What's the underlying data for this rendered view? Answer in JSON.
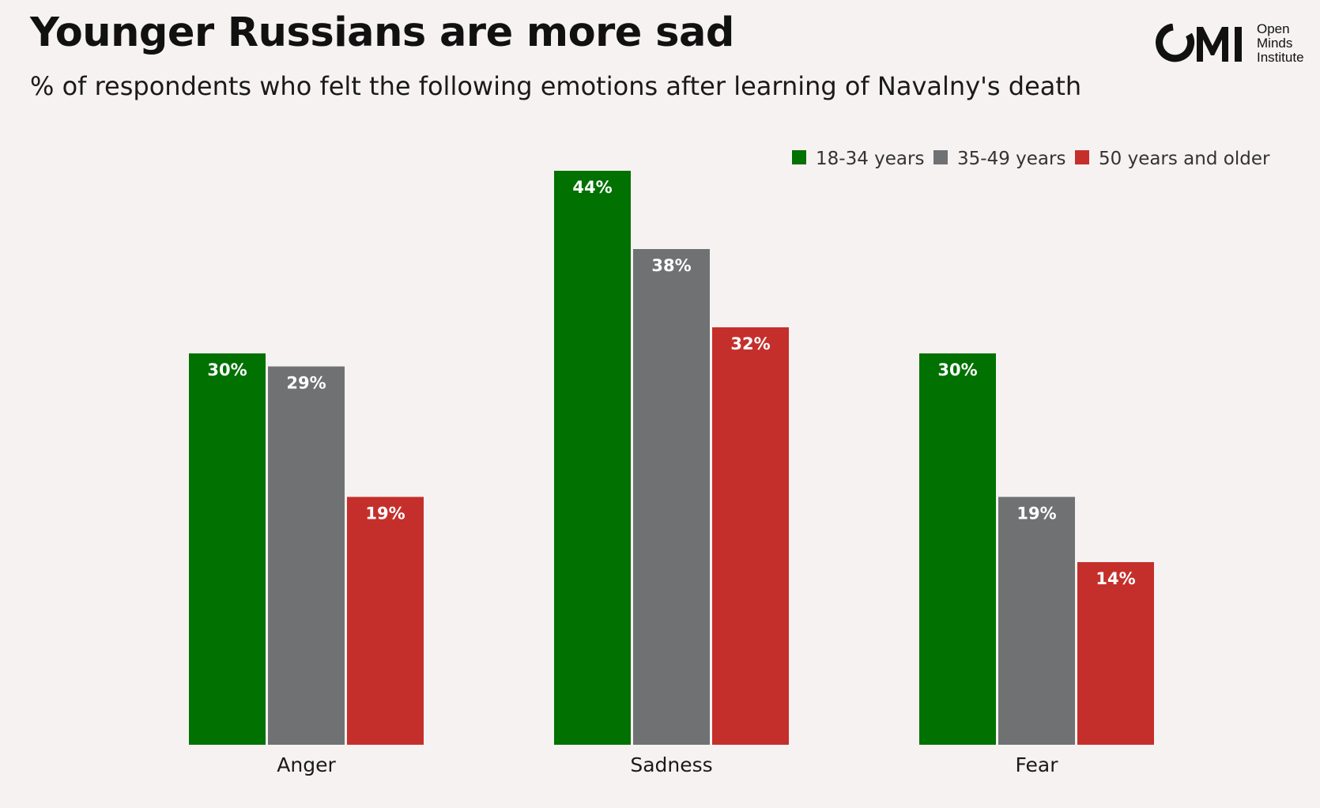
{
  "header": {
    "title": "Younger Russians are more sad",
    "subtitle": "% of respondents who felt the following emotions after learning of Navalny's death"
  },
  "logo": {
    "mark": "OMI",
    "lines": [
      "Open",
      "Minds",
      "Institute"
    ]
  },
  "colors": {
    "background": "#f6f2f1",
    "green": "#017101",
    "gray": "#707173",
    "red": "#c52f2b"
  },
  "chart_data": {
    "type": "bar",
    "title": "Younger Russians are more sad",
    "subtitle": "% of respondents who felt the following emotions after learning of Navalny's death",
    "xlabel": "",
    "ylabel": "",
    "ylim": [
      0,
      44
    ],
    "grid": false,
    "legend_position": "top-right",
    "categories": [
      "Anger",
      "Sadness",
      "Fear"
    ],
    "series": [
      {
        "name": "18-34 years",
        "color": "#017101",
        "values": [
          30,
          44,
          30
        ],
        "labels": [
          "30%",
          "44%",
          "30%"
        ]
      },
      {
        "name": "35-49 years",
        "color": "#707173",
        "values": [
          29,
          38,
          19
        ],
        "labels": [
          "29%",
          "38%",
          "19%"
        ]
      },
      {
        "name": "50 years and older",
        "color": "#c52f2b",
        "values": [
          19,
          32,
          14
        ],
        "labels": [
          "19%",
          "32%",
          "14%"
        ]
      }
    ]
  }
}
